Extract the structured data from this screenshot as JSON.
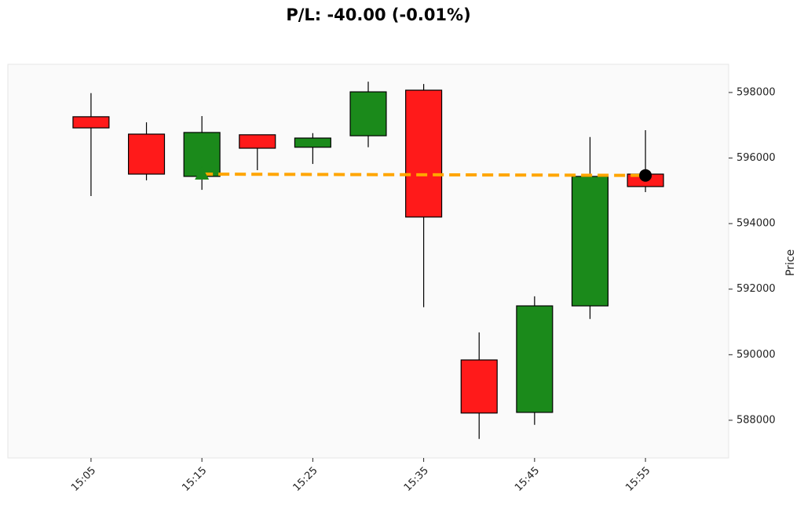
{
  "chart_data": {
    "type": "candlestick",
    "title": "P/L: -40.00 (-0.01%)",
    "y_label": "Price",
    "categories": [
      "15:05",
      null,
      "15:15",
      null,
      "15:25",
      null,
      "15:35",
      null,
      "15:45",
      null,
      "15:55"
    ],
    "open": [
      597260,
      596730,
      595440,
      596710,
      596330,
      596680,
      598070,
      589840,
      588240,
      591490,
      595510
    ],
    "high": [
      597980,
      597090,
      597280,
      596710,
      596760,
      598330,
      598260,
      590680,
      591780,
      596640,
      596850
    ],
    "low": [
      594840,
      595320,
      595030,
      595630,
      595820,
      596330,
      591450,
      587430,
      587860,
      591090,
      594960
    ],
    "close": [
      596920,
      595510,
      596780,
      596300,
      596610,
      598020,
      594200,
      588220,
      591490,
      595440,
      595130
    ],
    "up_color": "#1b8a1b",
    "down_color": "#ff1a1a",
    "ylim": [
      586850,
      598860
    ],
    "yticks": [
      588000,
      590000,
      592000,
      594000,
      596000,
      598000
    ],
    "trade": {
      "entry": {
        "x": "15:15",
        "price": 595510,
        "color": "#1b8a1b"
      },
      "exit": {
        "x": "15:55",
        "price": 595470,
        "color": "#000000"
      },
      "line_color": "#ffa500"
    }
  }
}
